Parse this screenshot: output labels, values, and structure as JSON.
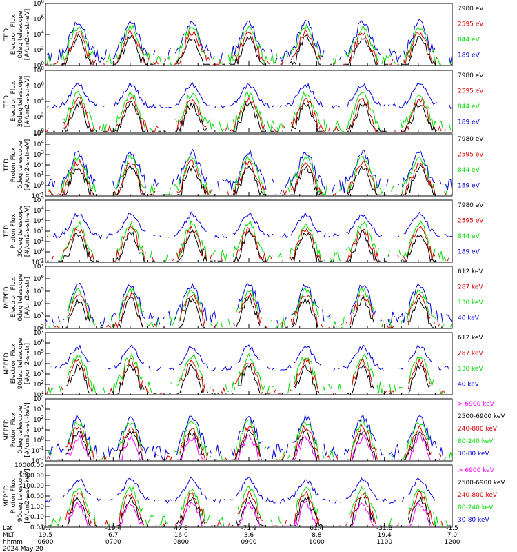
{
  "colors": {
    "black": "#000000",
    "red": "#dd0000",
    "green": "#00dd00",
    "blue": "#0000dd",
    "magenta": "#ff00ff"
  },
  "chart_data": [
    {
      "type": "line",
      "ylabel": [
        "TED",
        "Electron Flux",
        "0deg telescope",
        "[#/cm2-s-str-eV]"
      ],
      "scale": "log",
      "ytick_labels": [
        "10^8",
        "10^6",
        "10^4",
        "10^2",
        "10^0"
      ],
      "legend": [
        {
          "label": "7980 eV",
          "color": "black"
        },
        {
          "label": "2595 eV",
          "color": "red"
        },
        {
          "label": "844 eV",
          "color": "green"
        },
        {
          "label": "189 eV",
          "color": "blue"
        }
      ]
    },
    {
      "type": "line",
      "ylabel": [
        "TED",
        "Electron Flux",
        "30deg telescope",
        "[#/cm2-s-str-eV]"
      ],
      "scale": "log",
      "ytick_labels": [
        "10^8",
        "10^6",
        "10^4",
        "10^2",
        "10^0"
      ],
      "legend": [
        {
          "label": "7980 eV",
          "color": "black"
        },
        {
          "label": "2595 eV",
          "color": "red"
        },
        {
          "label": "844 eV",
          "color": "green"
        },
        {
          "label": "189 eV",
          "color": "blue"
        }
      ]
    },
    {
      "type": "line",
      "ylabel": [
        "TED",
        "Proton Flux",
        "0deg telescope",
        "[#/cm2-s-str-eV]"
      ],
      "scale": "log",
      "ytick_labels": [
        "10^5",
        "10^4",
        "10^3",
        "10^2",
        "10^1",
        "10^0",
        "10^-1"
      ],
      "legend": [
        {
          "label": "7980 eV",
          "color": "black"
        },
        {
          "label": "2595 eV",
          "color": "red"
        },
        {
          "label": "844 eV",
          "color": "green"
        },
        {
          "label": "189 eV",
          "color": "blue"
        }
      ]
    },
    {
      "type": "line",
      "ylabel": [
        "TED",
        "Proton Flux",
        "30deg telescope",
        "[#/cm2-s-str-eV]"
      ],
      "scale": "log",
      "ytick_labels": [
        "10^5",
        "10^4",
        "10^3",
        "10^2",
        "10^1",
        "10^0",
        "10^-1"
      ],
      "legend": [
        {
          "label": "7980 eV",
          "color": "black"
        },
        {
          "label": "2595 eV",
          "color": "red"
        },
        {
          "label": "844 eV",
          "color": "green"
        },
        {
          "label": "189 eV",
          "color": "blue"
        }
      ]
    },
    {
      "type": "line",
      "ylabel": [
        "MEPED",
        "Electron Flux",
        "0deg telescope",
        "[#/cm2-s-str]"
      ],
      "scale": "log",
      "ytick_labels": [
        "10^7",
        "10^6",
        "10^5",
        "10^4",
        "10^3",
        "10^2"
      ],
      "legend": [
        {
          "label": "612 keV",
          "color": "black"
        },
        {
          "label": "287 keV",
          "color": "red"
        },
        {
          "label": "130 keV",
          "color": "green"
        },
        {
          "label": "40 keV",
          "color": "blue"
        }
      ]
    },
    {
      "type": "line",
      "ylabel": [
        "MEPED",
        "Electron Flux",
        "90deg telescope",
        "[#/cm2-s-str]"
      ],
      "scale": "log",
      "ytick_labels": [
        "10^7",
        "10^6",
        "10^5",
        "10^4",
        "10^3",
        "10^2",
        "10^1"
      ],
      "legend": [
        {
          "label": "612 keV",
          "color": "black"
        },
        {
          "label": "287 keV",
          "color": "red"
        },
        {
          "label": "130 keV",
          "color": "green"
        },
        {
          "label": "40 keV",
          "color": "blue"
        }
      ]
    },
    {
      "type": "line",
      "ylabel": [
        "MEPED",
        "Proton Flux",
        "0deg telescope",
        "[#/cm2-s-str-keV]"
      ],
      "scale": "log",
      "ytick_labels": [
        "10^4",
        "10^3",
        "10^2",
        "10^1",
        "10^0",
        "10^-1",
        "10^-2"
      ],
      "legend": [
        {
          "label": "> 6900 keV",
          "color": "magenta"
        },
        {
          "label": "2500-6900 keV",
          "color": "black"
        },
        {
          "label": "240-800 keV",
          "color": "red"
        },
        {
          "label": "80-240 keV",
          "color": "green"
        },
        {
          "label": "30-80 keV",
          "color": "blue"
        }
      ]
    },
    {
      "type": "line",
      "ylabel": [
        "MEPED",
        "Proton Flux",
        "90deg telescope",
        "[#/cm2-s-str-keV]"
      ],
      "scale": "log",
      "ytick_labels": [
        "10000.00",
        "1000.00",
        "100.00",
        "10.00",
        "1.00",
        "0.10",
        "0.01"
      ],
      "legend": [
        {
          "label": "> 6900 keV",
          "color": "magenta"
        },
        {
          "label": "2500-6900 keV",
          "color": "black"
        },
        {
          "label": "240-800 keV",
          "color": "red"
        },
        {
          "label": "80-240 keV",
          "color": "green"
        },
        {
          "label": "30-80 keV",
          "color": "blue"
        }
      ]
    }
  ],
  "xaxis": {
    "row_labels": [
      "Lat",
      "MLT",
      "hhmm",
      "2024 May 20"
    ],
    "ticks": [
      {
        "lat": "-9.7",
        "mlt": "19.5",
        "hhmm": "0600"
      },
      {
        "lat": "-19.4",
        "mlt": "6.7",
        "hhmm": "0700"
      },
      {
        "lat": "47.8",
        "mlt": "16.0",
        "hhmm": "0800"
      },
      {
        "lat": "-71.9",
        "mlt": "3.6",
        "hhmm": "0900"
      },
      {
        "lat": "61.4",
        "mlt": "8.8",
        "hhmm": "1000"
      },
      {
        "lat": "-31.8",
        "mlt": "19.4",
        "hhmm": "1100"
      },
      {
        "lat": "-1.5",
        "mlt": "7.0",
        "hhmm": "1200"
      }
    ]
  }
}
